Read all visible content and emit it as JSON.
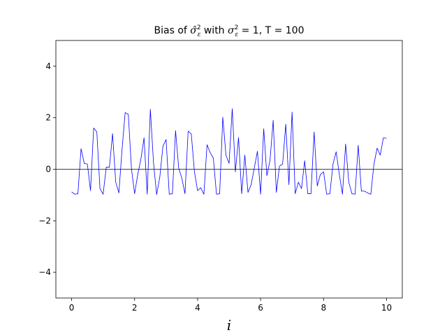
{
  "chart_data": {
    "type": "line",
    "title_parts": {
      "prefix": "Bias of ",
      "sigma_hat": "σ̂",
      "hat_sup": "2",
      "hat_sub": "ε",
      "with": " with ",
      "sigma": "σ",
      "sup": "2",
      "sub": "ε",
      "rest": " = 1, T = 100"
    },
    "xlabel": "i",
    "ylabel": "",
    "xlim": [
      -0.5,
      10.5
    ],
    "ylim": [
      -5,
      5
    ],
    "x_ticks": [
      0,
      2,
      4,
      6,
      8,
      10
    ],
    "x_tick_labels": [
      "0",
      "2",
      "4",
      "6",
      "8",
      "10"
    ],
    "y_ticks": [
      -4,
      -2,
      0,
      2,
      4
    ],
    "y_tick_labels": [
      "−4",
      "−2",
      "0",
      "2",
      "4"
    ],
    "grid": false,
    "reference_line": {
      "y": 0,
      "color": "#000000"
    },
    "series": [
      {
        "color": "#0000ff",
        "x_start": 0,
        "x_step": 0.1,
        "values": [
          -0.88,
          -0.97,
          -0.95,
          0.8,
          0.23,
          0.2,
          -0.83,
          1.6,
          1.45,
          -0.75,
          -0.97,
          0.08,
          0.08,
          1.38,
          -0.5,
          -0.92,
          0.75,
          2.2,
          2.13,
          0.02,
          -0.95,
          -0.2,
          0.4,
          1.22,
          -0.97,
          2.33,
          0.25,
          -0.98,
          -0.3,
          0.9,
          1.15,
          -0.97,
          -0.95,
          1.5,
          0.05,
          -0.35,
          -0.95,
          1.48,
          1.37,
          -0.1,
          -0.83,
          -0.72,
          -0.97,
          0.95,
          0.65,
          0.43,
          -0.97,
          -0.95,
          2.02,
          0.55,
          0.23,
          2.35,
          -0.1,
          1.23,
          -0.95,
          0.55,
          -0.9,
          -0.6,
          0.05,
          0.7,
          -0.97,
          1.57,
          -0.25,
          0.35,
          1.9,
          -0.9,
          0.12,
          0.2,
          1.75,
          -0.6,
          2.22,
          -0.95,
          -0.5,
          -0.75,
          0.33,
          -0.95,
          -0.95,
          1.45,
          -0.65,
          -0.2,
          -0.1,
          -0.97,
          -0.95,
          0.2,
          0.68,
          -0.2,
          -0.97,
          0.98,
          -0.5,
          -0.95,
          -0.97,
          0.93,
          -0.85,
          -0.85,
          -0.92,
          -0.97,
          0.2,
          0.82,
          0.55,
          1.22,
          1.2
        ]
      }
    ]
  }
}
